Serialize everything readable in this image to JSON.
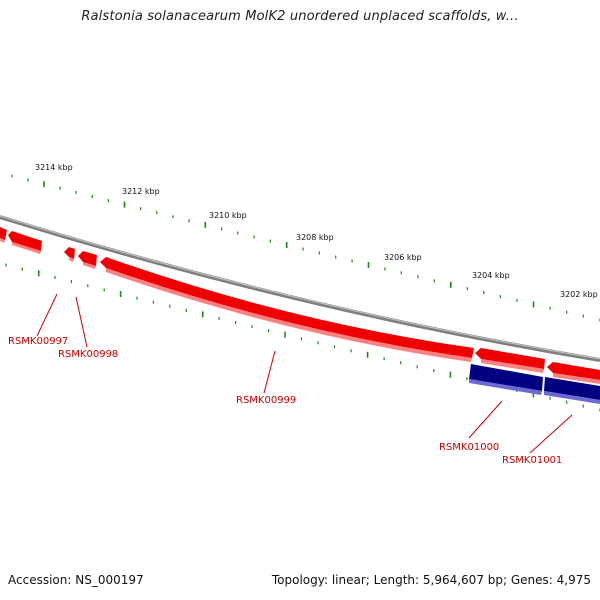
{
  "title": "Ralstonia solanacearum MolK2 unordered unplaced scaffolds, w...",
  "ruler": {
    "tick_color": "#1a8a1a",
    "labels": [
      "3214 kbp",
      "3212 kbp",
      "3210 kbp",
      "3208 kbp",
      "3206 kbp",
      "3204 kbp",
      "3202 kbp"
    ]
  },
  "genes": [
    {
      "label": "RSMK00997",
      "strand": "+"
    },
    {
      "label": "RSMK00998",
      "strand": "+"
    },
    {
      "label": "RSMK00999",
      "strand": "+"
    },
    {
      "label": "RSMK01000",
      "strand": "-"
    },
    {
      "label": "RSMK01001",
      "strand": "-"
    }
  ],
  "colors": {
    "forward_gene": "#ee0000",
    "reverse_gene": "#000080",
    "backbone": "#7f7f7f",
    "gene_label": "#cc0000"
  },
  "footer": {
    "accession": "Accession: NS_000197",
    "summary": "Topology: linear; Length: 5,964,607 bp; Genes: 4,975"
  }
}
